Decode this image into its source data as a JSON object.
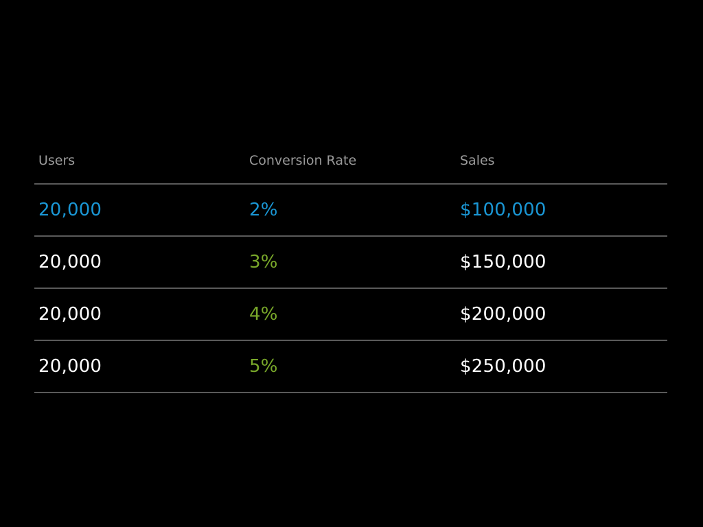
{
  "chart_data": {
    "type": "table",
    "columns": [
      "Users",
      "Conversion Rate",
      "Sales"
    ],
    "rows": [
      {
        "users": "20,000",
        "rate": "2%",
        "sales": "$100,000",
        "highlight": true
      },
      {
        "users": "20,000",
        "rate": "3%",
        "sales": "$150,000",
        "highlight": false
      },
      {
        "users": "20,000",
        "rate": "4%",
        "sales": "$200,000",
        "highlight": false
      },
      {
        "users": "20,000",
        "rate": "5%",
        "sales": "$250,000",
        "highlight": false
      }
    ],
    "colors": {
      "header_text": "#9a9a9a",
      "highlight_row": "#1a96d4",
      "rate_column": "#79a82a",
      "value_text": "#ffffff",
      "divider": "#5a5a5a",
      "background": "#000000"
    }
  }
}
